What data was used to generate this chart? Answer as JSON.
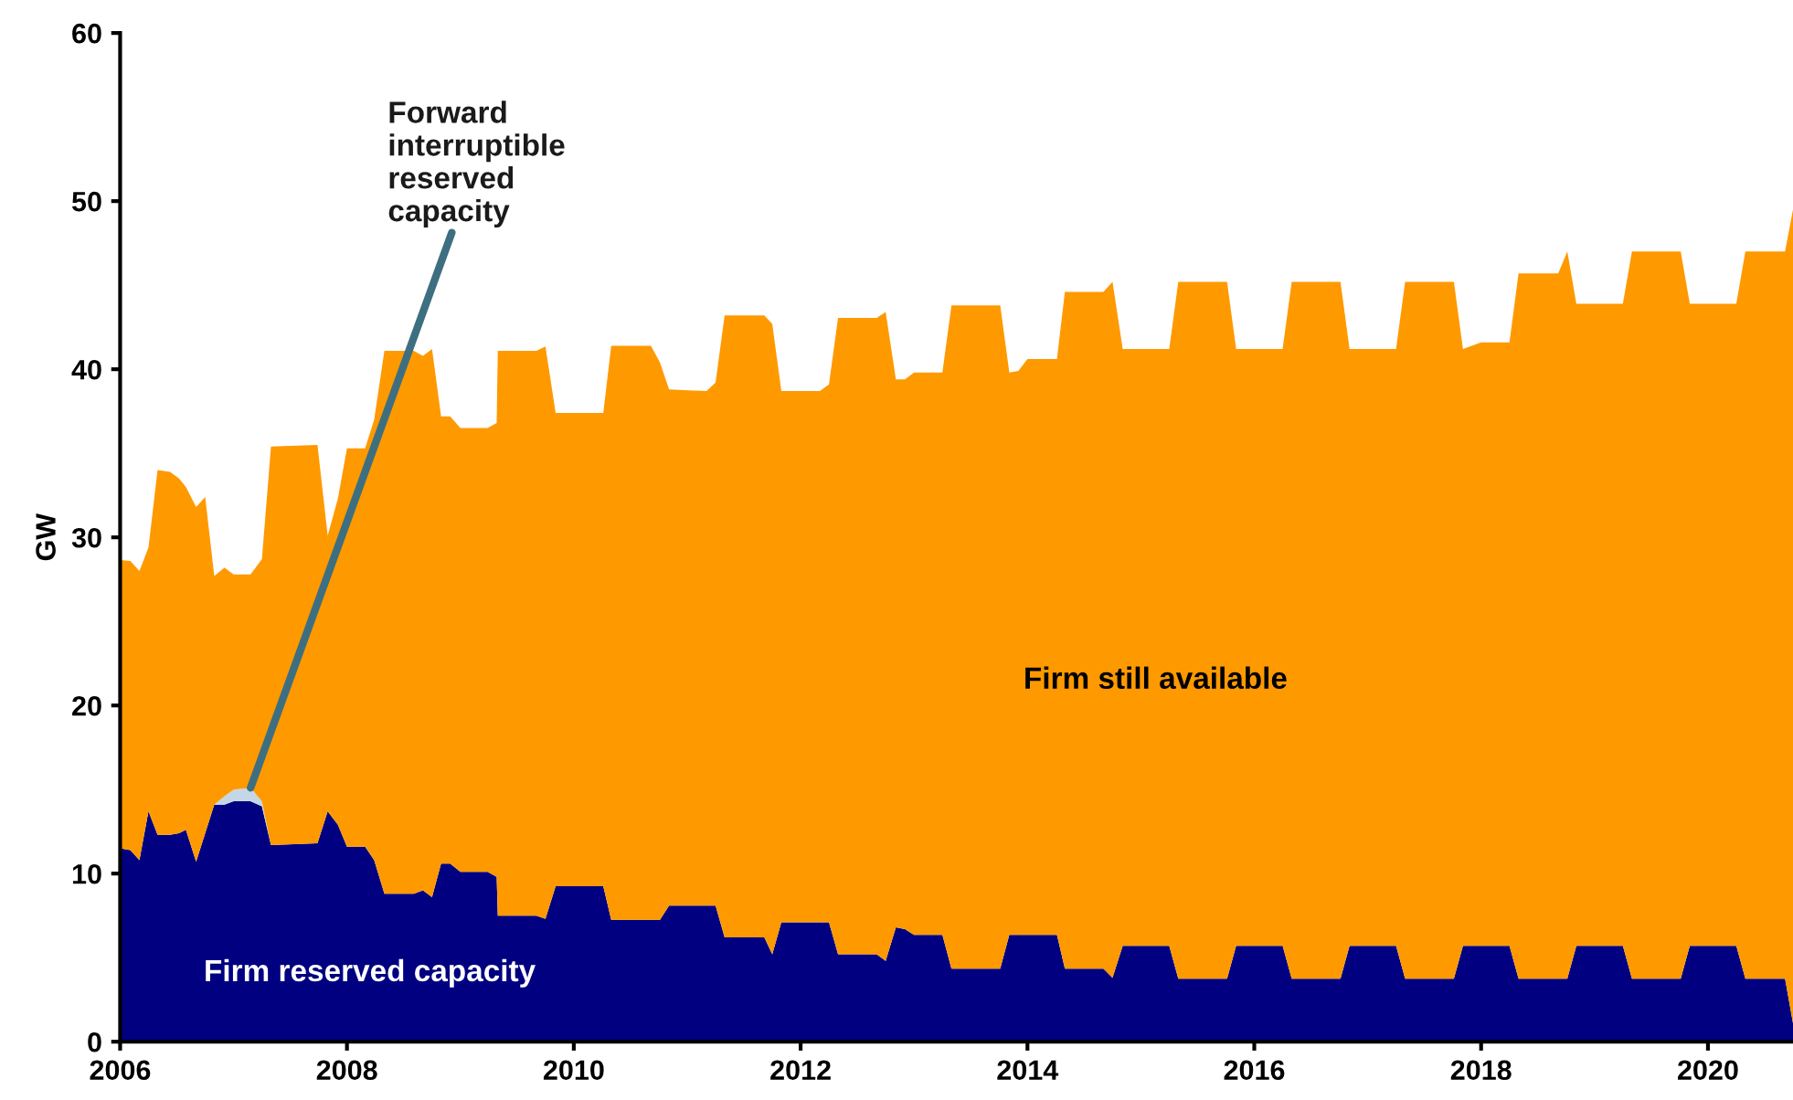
{
  "chart_data": {
    "type": "area",
    "stacked": true,
    "ylabel": "GW",
    "x": [
      2006.0,
      2006.09,
      2006.17,
      2006.25,
      2006.33,
      2006.44,
      2006.52,
      2006.58,
      2006.67,
      2006.75,
      2006.83,
      2006.92,
      2007.0,
      2007.15,
      2007.25,
      2007.33,
      2007.74,
      2007.83,
      2007.92,
      2008.0,
      2008.16,
      2008.24,
      2008.33,
      2008.59,
      2008.67,
      2008.75,
      2008.83,
      2008.91,
      2009.0,
      2009.24,
      2009.32,
      2009.33,
      2009.67,
      2009.75,
      2009.84,
      2010.26,
      2010.33,
      2010.68,
      2010.76,
      2010.84,
      2011.17,
      2011.25,
      2011.33,
      2011.68,
      2011.75,
      2011.83,
      2012.17,
      2012.25,
      2012.33,
      2012.67,
      2012.75,
      2012.84,
      2012.92,
      2013.0,
      2013.25,
      2013.33,
      2013.76,
      2013.84,
      2013.92,
      2014.0,
      2014.26,
      2014.33,
      2014.67,
      2014.75,
      2014.84,
      2015.25,
      2015.33,
      2015.76,
      2015.84,
      2016.25,
      2016.33,
      2016.76,
      2016.84,
      2017.25,
      2017.33,
      2017.76,
      2017.84,
      2018.0,
      2018.25,
      2018.33,
      2018.68,
      2018.76,
      2018.84,
      2019.25,
      2019.33,
      2019.76,
      2019.84,
      2020.25,
      2020.33,
      2020.68,
      2020.75
    ],
    "series": [
      {
        "name": "Firm reserved capacity",
        "color": "#000080",
        "values": [
          11.5,
          11.4,
          10.8,
          13.7,
          12.3,
          12.3,
          12.4,
          12.6,
          10.7,
          12.4,
          14.1,
          14.1,
          14.3,
          14.3,
          14.0,
          11.7,
          11.8,
          13.7,
          12.9,
          11.6,
          11.6,
          10.8,
          8.8,
          8.8,
          9.0,
          8.6,
          10.6,
          10.6,
          10.1,
          10.1,
          9.8,
          7.5,
          7.5,
          7.3,
          9.25,
          9.25,
          7.25,
          7.25,
          7.25,
          8.1,
          8.1,
          8.1,
          6.2,
          6.2,
          5.2,
          7.1,
          7.1,
          7.1,
          5.2,
          5.2,
          4.8,
          6.8,
          6.7,
          6.35,
          6.35,
          4.35,
          4.35,
          6.35,
          6.35,
          6.35,
          6.35,
          4.35,
          4.35,
          3.8,
          5.7,
          5.7,
          3.75,
          3.75,
          5.7,
          5.7,
          3.75,
          3.75,
          5.7,
          5.7,
          3.75,
          3.75,
          5.7,
          5.7,
          5.7,
          3.75,
          3.75,
          3.75,
          5.7,
          5.7,
          3.75,
          3.75,
          5.7,
          5.7,
          3.75,
          3.75,
          1.1
        ]
      },
      {
        "name": "Forward interruptible reserved capacity",
        "color": "#c5d7e6",
        "values": [
          0,
          0,
          0,
          0,
          0,
          0,
          0,
          0,
          0,
          0,
          0,
          0.5,
          0.7,
          0.8,
          0.3,
          0,
          0,
          0,
          0,
          0,
          0,
          0,
          0,
          0,
          0,
          0,
          0,
          0,
          0,
          0,
          0,
          0,
          0,
          0,
          0,
          0,
          0,
          0,
          0,
          0,
          0,
          0,
          0,
          0,
          0,
          0,
          0,
          0,
          0,
          0,
          0,
          0,
          0,
          0,
          0,
          0,
          0,
          0,
          0,
          0,
          0,
          0,
          0,
          0,
          0,
          0,
          0,
          0,
          0,
          0,
          0,
          0,
          0,
          0,
          0,
          0,
          0,
          0,
          0,
          0,
          0,
          0,
          0,
          0,
          0,
          0,
          0,
          0,
          0,
          0,
          0
        ]
      },
      {
        "name": "Firm still available",
        "color": "#ff9900",
        "values": [
          17.15,
          17.2,
          17.2,
          15.7,
          21.7,
          21.6,
          21.1,
          20.4,
          21.1,
          20.0,
          13.6,
          13.6,
          12.8,
          12.7,
          14.4,
          23.7,
          23.7,
          16.4,
          19.4,
          23.7,
          23.7,
          26.2,
          32.3,
          32.3,
          31.8,
          32.6,
          26.6,
          26.6,
          26.4,
          26.4,
          27.0,
          33.6,
          33.6,
          34.05,
          28.15,
          28.15,
          34.15,
          34.15,
          33.15,
          30.7,
          30.6,
          31.1,
          37.0,
          37.0,
          37.5,
          31.6,
          31.6,
          32.0,
          37.85,
          37.85,
          38.6,
          32.6,
          32.7,
          33.45,
          33.45,
          39.45,
          39.45,
          33.45,
          33.55,
          34.25,
          34.25,
          40.25,
          40.25,
          41.4,
          35.5,
          35.5,
          41.45,
          41.45,
          35.5,
          35.5,
          41.45,
          41.45,
          35.5,
          35.5,
          41.45,
          41.45,
          35.5,
          35.9,
          35.9,
          41.95,
          41.95,
          43.25,
          38.2,
          38.2,
          43.25,
          43.25,
          38.2,
          38.2,
          43.25,
          43.25,
          48.4
        ]
      }
    ],
    "xlim": [
      2006,
      2020.75
    ],
    "ylim": [
      0,
      60
    ],
    "xticks": [
      2006,
      2008,
      2010,
      2012,
      2014,
      2016,
      2018,
      2020
    ],
    "yticks": [
      0,
      10,
      20,
      30,
      40,
      50,
      60
    ],
    "grid": false,
    "legend": false
  }
}
